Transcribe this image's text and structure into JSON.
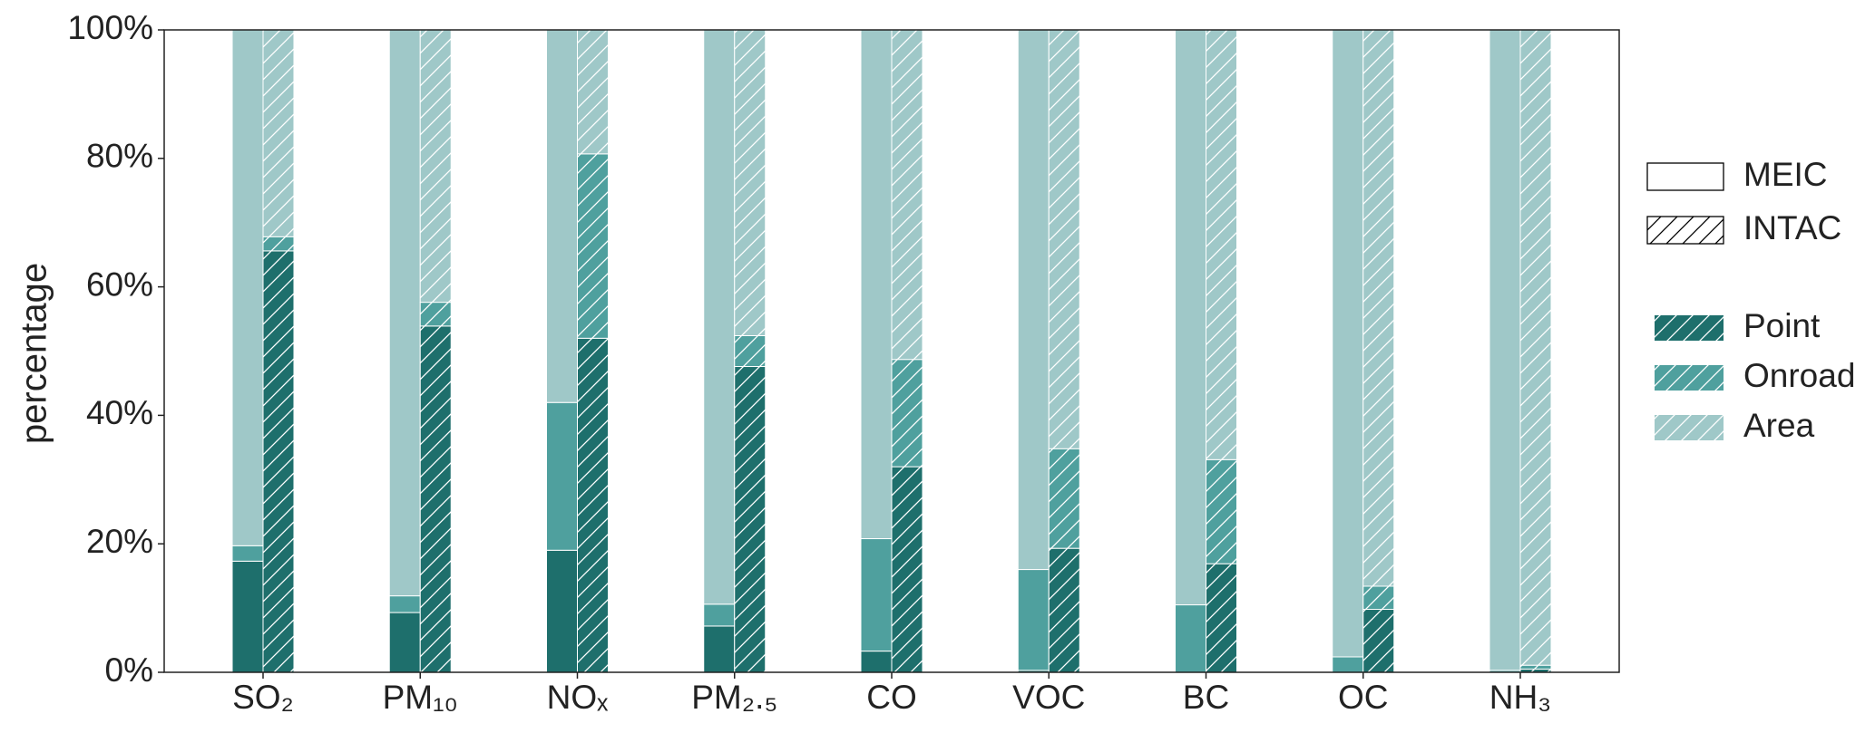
{
  "chart_data": {
    "type": "stacked-bar",
    "y_label": "percentage",
    "categories": [
      "SO₂",
      "PM₁₀",
      "NOₓ",
      "PM₂.₅",
      "CO",
      "VOC",
      "BC",
      "OC",
      "NH₃"
    ],
    "segments": [
      {
        "name": "Point",
        "color": "#1e6f6c"
      },
      {
        "name": "Onroad",
        "color": "#4fa09e"
      },
      {
        "name": "Area",
        "color": "#9fc8c8"
      }
    ],
    "datasets": [
      {
        "name": "MEIC",
        "hatch": false,
        "series": [
          {
            "values": [
              17.3,
              9.3,
              19,
              7.2,
              3.3,
              0.3,
              0,
              0,
              0
            ]
          },
          {
            "values": [
              2.4,
              2.6,
              23,
              3.4,
              17.5,
              15.7,
              10.5,
              2.4,
              0.3
            ]
          },
          {
            "values": [
              80.3,
              88.1,
              58,
              89.4,
              79.2,
              84,
              89.5,
              97.6,
              99.7
            ]
          }
        ]
      },
      {
        "name": "INTAC",
        "hatch": true,
        "series": [
          {
            "values": [
              65.6,
              53.9,
              52,
              47.6,
              32,
              19.3,
              16.9,
              9.8,
              0.5
            ]
          },
          {
            "values": [
              2.2,
              3.7,
              28.7,
              4.8,
              16.7,
              15.5,
              16.2,
              3.6,
              0.6
            ]
          },
          {
            "values": [
              32.2,
              42.4,
              19.3,
              47.6,
              51.3,
              65.2,
              66.9,
              86.6,
              98.9
            ]
          }
        ]
      }
    ],
    "ylim": [
      0,
      100
    ],
    "yticks": [
      {
        "value": 0,
        "label": "0%"
      },
      {
        "value": 20,
        "label": "20%"
      },
      {
        "value": 40,
        "label": "40%"
      },
      {
        "value": 60,
        "label": "60%"
      },
      {
        "value": 80,
        "label": "80%"
      },
      {
        "value": 100,
        "label": "100%"
      }
    ]
  }
}
